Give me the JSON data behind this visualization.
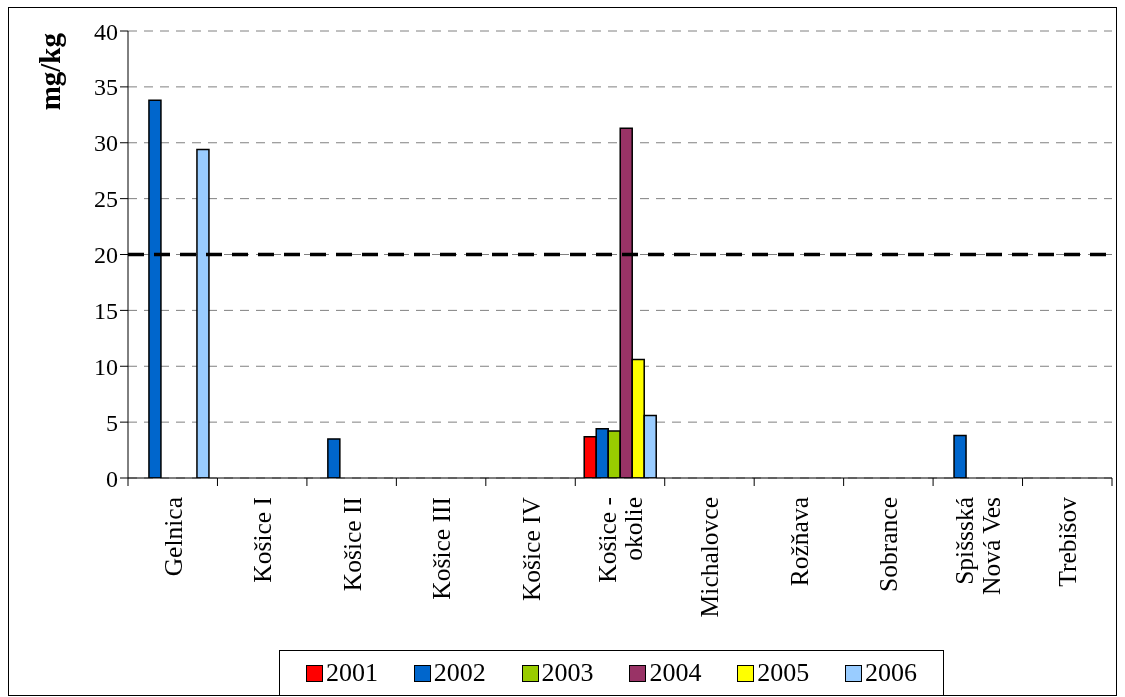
{
  "chart_data": {
    "type": "bar",
    "ylabel": "mg/kg",
    "categories": [
      "Gelnica",
      "Košice I",
      "Košice II",
      "Košice III",
      "Košice IV",
      "Košice - okolie",
      "Michalovce",
      "Rožňava",
      "Sobrance",
      "Spišsská Nová Ves",
      "Trebišov"
    ],
    "series": [
      {
        "name": "2001",
        "color": "#ff0000",
        "values": [
          null,
          null,
          null,
          null,
          null,
          3.7,
          null,
          null,
          null,
          null,
          null
        ]
      },
      {
        "name": "2002",
        "color": "#0066cc",
        "values": [
          33.8,
          null,
          3.5,
          null,
          null,
          4.4,
          null,
          null,
          null,
          3.8,
          null
        ]
      },
      {
        "name": "2003",
        "color": "#99cc00",
        "values": [
          null,
          null,
          null,
          null,
          null,
          4.2,
          null,
          null,
          null,
          null,
          null
        ]
      },
      {
        "name": "2004",
        "color": "#993366",
        "values": [
          null,
          null,
          null,
          null,
          null,
          31.3,
          null,
          null,
          null,
          null,
          null
        ]
      },
      {
        "name": "2005",
        "color": "#ffff00",
        "values": [
          null,
          null,
          null,
          null,
          null,
          10.6,
          null,
          null,
          null,
          null,
          null
        ]
      },
      {
        "name": "2006",
        "color": "#99ccff",
        "values": [
          29.4,
          null,
          null,
          null,
          null,
          5.6,
          null,
          null,
          null,
          null,
          null
        ]
      }
    ],
    "ylim": [
      0,
      40
    ],
    "yticks": [
      0,
      5,
      10,
      15,
      20,
      25,
      30,
      35,
      40
    ],
    "grid": "y",
    "legend": "bottom",
    "ref_lines": [
      {
        "axis": "y",
        "value": 20,
        "color": "#000000",
        "line_style": "dashed"
      }
    ]
  }
}
